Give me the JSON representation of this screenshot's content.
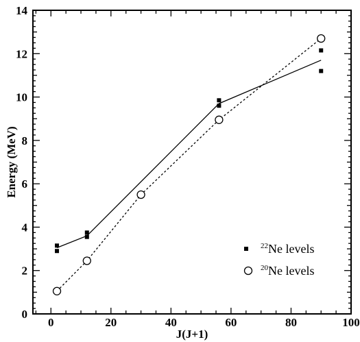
{
  "chart_data": {
    "type": "scatter",
    "xlabel": "J(J+1)",
    "ylabel": "Energy (MeV)",
    "xlim": [
      -6,
      100
    ],
    "ylim": [
      0,
      14
    ],
    "x_ticks": [
      0,
      20,
      40,
      60,
      80,
      100
    ],
    "y_ticks": [
      0,
      2,
      4,
      6,
      8,
      10,
      12,
      14
    ],
    "grid": false,
    "legend_position": "bottom-right",
    "series": [
      {
        "name": "22Ne levels",
        "legend_sup": "22",
        "legend_text": "Ne levels",
        "marker": "filled-square",
        "line_style": "solid",
        "points": [
          {
            "x": 2,
            "y": 2.9
          },
          {
            "x": 2,
            "y": 3.15
          },
          {
            "x": 12,
            "y": 3.55
          },
          {
            "x": 12,
            "y": 3.75
          },
          {
            "x": 56,
            "y": 9.6
          },
          {
            "x": 56,
            "y": 9.85
          },
          {
            "x": 90,
            "y": 11.2
          },
          {
            "x": 90,
            "y": 12.15
          }
        ],
        "line": [
          {
            "x": 2,
            "y": 3.05
          },
          {
            "x": 12,
            "y": 3.6
          },
          {
            "x": 56,
            "y": 9.7
          },
          {
            "x": 90,
            "y": 11.7
          }
        ]
      },
      {
        "name": "20Ne levels",
        "legend_sup": "20",
        "legend_text": "Ne levels",
        "marker": "open-circle",
        "line_style": "dashed",
        "points": [
          {
            "x": 2,
            "y": 1.05
          },
          {
            "x": 12,
            "y": 2.45
          },
          {
            "x": 30,
            "y": 5.5
          },
          {
            "x": 56,
            "y": 8.95
          },
          {
            "x": 90,
            "y": 12.7
          }
        ],
        "line": [
          {
            "x": 2,
            "y": 1.05
          },
          {
            "x": 12,
            "y": 2.45
          },
          {
            "x": 30,
            "y": 5.5
          },
          {
            "x": 56,
            "y": 8.95
          },
          {
            "x": 90,
            "y": 12.7
          }
        ]
      }
    ]
  }
}
